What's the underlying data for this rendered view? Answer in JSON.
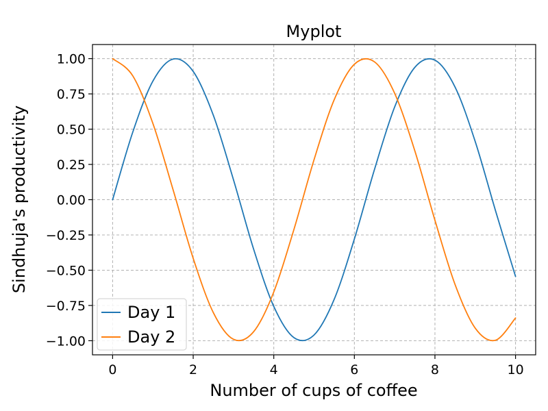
{
  "chart_data": {
    "type": "line",
    "title": "Myplot",
    "xlabel": "Number of cups of coffee",
    "ylabel": "Sindhuja's productivity",
    "xlim": [
      -0.5,
      10.5
    ],
    "ylim": [
      -1.1,
      1.1
    ],
    "x_ticks": [
      0,
      2,
      4,
      6,
      8,
      10
    ],
    "x_tick_labels": [
      "0",
      "2",
      "4",
      "6",
      "8",
      "10"
    ],
    "y_ticks": [
      1.0,
      0.75,
      0.5,
      0.25,
      0.0,
      -0.25,
      -0.5,
      -0.75,
      -1.0
    ],
    "y_tick_labels": [
      "1.00",
      "0.75",
      "0.50",
      "0.25",
      "0.00",
      "−0.25",
      "−0.50",
      "−0.75",
      "−1.00"
    ],
    "grid": true,
    "legend_position": "lower-left",
    "series": [
      {
        "name": "Day 1",
        "color": "#1f77b4",
        "x": [
          0,
          0.5,
          1,
          1.5,
          2,
          2.5,
          3,
          3.5,
          4,
          4.5,
          5,
          5.5,
          6,
          6.5,
          7,
          7.5,
          8,
          8.5,
          9,
          9.5,
          10
        ],
        "y": [
          0.0,
          0.479,
          0.841,
          0.997,
          0.909,
          0.598,
          0.141,
          -0.351,
          -0.757,
          -0.978,
          -0.959,
          -0.706,
          -0.279,
          0.215,
          0.657,
          0.938,
          0.989,
          0.798,
          0.412,
          -0.075,
          -0.544
        ]
      },
      {
        "name": "Day 2",
        "color": "#ff7f0e",
        "x": [
          0,
          0.5,
          1,
          1.5,
          2,
          2.5,
          3,
          3.5,
          4,
          4.5,
          5,
          5.5,
          6,
          6.5,
          7,
          7.5,
          8,
          8.5,
          9,
          9.5,
          10
        ],
        "y": [
          1.0,
          0.878,
          0.54,
          0.071,
          -0.416,
          -0.801,
          -0.99,
          -0.936,
          -0.654,
          -0.211,
          0.284,
          0.709,
          0.96,
          0.977,
          0.754,
          0.347,
          -0.146,
          -0.602,
          -0.911,
          -0.997,
          -0.839
        ]
      }
    ]
  }
}
